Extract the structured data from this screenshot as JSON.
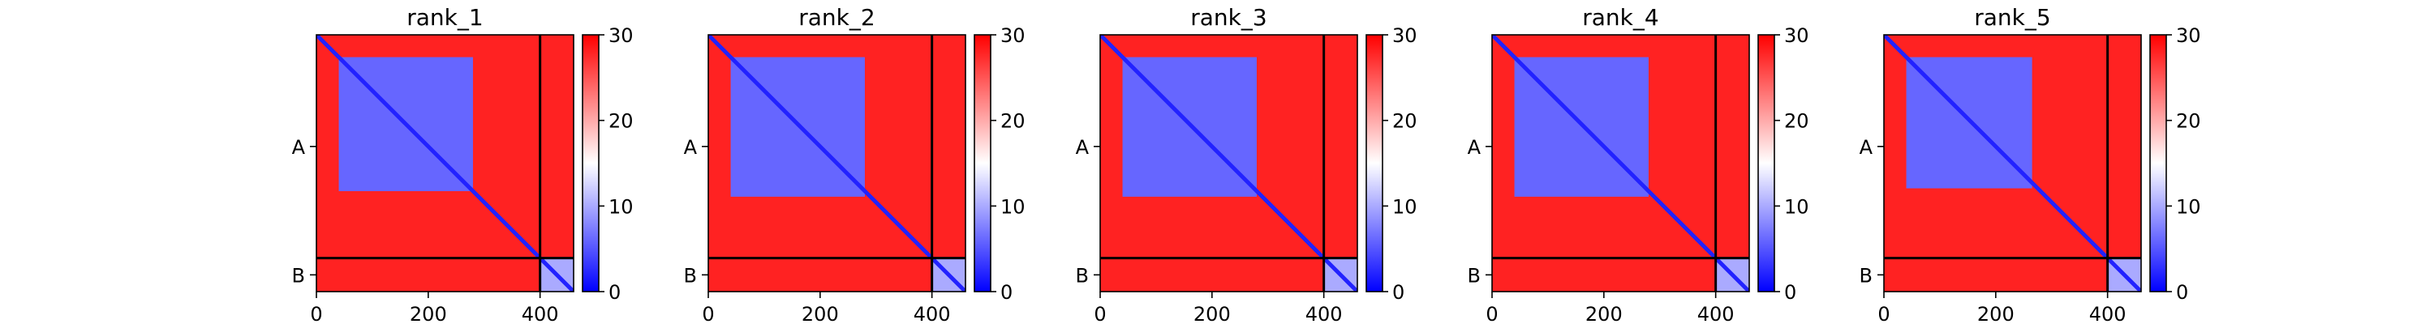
{
  "figure": {
    "colormap": {
      "low_color": "#0000ff",
      "mid_color": "#ffffff",
      "high_color": "#ff0000",
      "range": [
        0,
        30
      ],
      "ticks": [
        "0",
        "10",
        "20",
        "30"
      ]
    }
  },
  "chart_data": [
    {
      "type": "heatmap",
      "title": "rank_1",
      "xlabel": "",
      "ylabel": "",
      "xlim": [
        0,
        460
      ],
      "ylim": [
        460,
        0
      ],
      "x_ticks": [
        "0",
        "200",
        "400"
      ],
      "chain_labels": [
        "A",
        "B"
      ],
      "chain_boundary": 400,
      "blocks": [
        {
          "x": [
            0,
            400
          ],
          "y": [
            0,
            400
          ],
          "value": 28
        },
        {
          "x": [
            40,
            280
          ],
          "y": [
            40,
            280
          ],
          "value": 6
        },
        {
          "x": [
            400,
            460
          ],
          "y": [
            400,
            460
          ],
          "value": 10
        },
        {
          "x": [
            400,
            460
          ],
          "y": [
            0,
            400
          ],
          "value": 28
        },
        {
          "x": [
            0,
            400
          ],
          "y": [
            400,
            460
          ],
          "value": 28
        }
      ],
      "diagonal_value": 2,
      "grid": false,
      "legend": "none"
    },
    {
      "type": "heatmap",
      "title": "rank_2",
      "xlabel": "",
      "ylabel": "",
      "xlim": [
        0,
        460
      ],
      "ylim": [
        460,
        0
      ],
      "x_ticks": [
        "0",
        "200",
        "400"
      ],
      "chain_labels": [
        "A",
        "B"
      ],
      "chain_boundary": 400,
      "blocks": [
        {
          "x": [
            0,
            400
          ],
          "y": [
            0,
            400
          ],
          "value": 28
        },
        {
          "x": [
            40,
            280
          ],
          "y": [
            40,
            290
          ],
          "value": 6
        },
        {
          "x": [
            400,
            460
          ],
          "y": [
            400,
            460
          ],
          "value": 10
        },
        {
          "x": [
            400,
            460
          ],
          "y": [
            0,
            400
          ],
          "value": 28
        },
        {
          "x": [
            0,
            400
          ],
          "y": [
            400,
            460
          ],
          "value": 28
        }
      ],
      "diagonal_value": 2,
      "grid": false,
      "legend": "none"
    },
    {
      "type": "heatmap",
      "title": "rank_3",
      "xlabel": "",
      "ylabel": "",
      "xlim": [
        0,
        460
      ],
      "ylim": [
        460,
        0
      ],
      "x_ticks": [
        "0",
        "200",
        "400"
      ],
      "chain_labels": [
        "A",
        "B"
      ],
      "chain_boundary": 400,
      "blocks": [
        {
          "x": [
            0,
            400
          ],
          "y": [
            0,
            400
          ],
          "value": 28
        },
        {
          "x": [
            40,
            280
          ],
          "y": [
            40,
            290
          ],
          "value": 6
        },
        {
          "x": [
            400,
            460
          ],
          "y": [
            400,
            460
          ],
          "value": 10
        },
        {
          "x": [
            400,
            460
          ],
          "y": [
            0,
            400
          ],
          "value": 28
        },
        {
          "x": [
            0,
            400
          ],
          "y": [
            400,
            460
          ],
          "value": 28
        }
      ],
      "diagonal_value": 2,
      "grid": false,
      "legend": "none"
    },
    {
      "type": "heatmap",
      "title": "rank_4",
      "xlabel": "",
      "ylabel": "",
      "xlim": [
        0,
        460
      ],
      "ylim": [
        460,
        0
      ],
      "x_ticks": [
        "0",
        "200",
        "400"
      ],
      "chain_labels": [
        "A",
        "B"
      ],
      "chain_boundary": 400,
      "blocks": [
        {
          "x": [
            0,
            400
          ],
          "y": [
            0,
            400
          ],
          "value": 28
        },
        {
          "x": [
            40,
            280
          ],
          "y": [
            40,
            290
          ],
          "value": 6
        },
        {
          "x": [
            400,
            460
          ],
          "y": [
            400,
            460
          ],
          "value": 10
        },
        {
          "x": [
            400,
            460
          ],
          "y": [
            0,
            400
          ],
          "value": 28
        },
        {
          "x": [
            0,
            400
          ],
          "y": [
            400,
            460
          ],
          "value": 28
        }
      ],
      "diagonal_value": 2,
      "grid": false,
      "legend": "none"
    },
    {
      "type": "heatmap",
      "title": "rank_5",
      "xlabel": "",
      "ylabel": "",
      "xlim": [
        0,
        460
      ],
      "ylim": [
        460,
        0
      ],
      "x_ticks": [
        "0",
        "200",
        "400"
      ],
      "chain_labels": [
        "A",
        "B"
      ],
      "chain_boundary": 400,
      "blocks": [
        {
          "x": [
            0,
            400
          ],
          "y": [
            0,
            400
          ],
          "value": 28
        },
        {
          "x": [
            40,
            265
          ],
          "y": [
            40,
            275
          ],
          "value": 6
        },
        {
          "x": [
            400,
            460
          ],
          "y": [
            400,
            460
          ],
          "value": 10
        },
        {
          "x": [
            400,
            460
          ],
          "y": [
            0,
            400
          ],
          "value": 28
        },
        {
          "x": [
            0,
            400
          ],
          "y": [
            400,
            460
          ],
          "value": 28
        }
      ],
      "diagonal_value": 2,
      "grid": false,
      "legend": "none"
    }
  ]
}
